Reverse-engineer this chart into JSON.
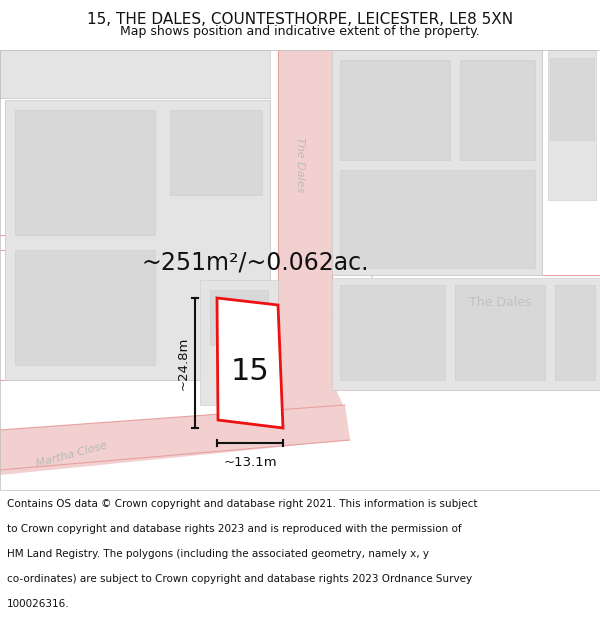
{
  "title_line1": "15, THE DALES, COUNTESTHORPE, LEICESTER, LE8 5XN",
  "title_line2": "Map shows position and indicative extent of the property.",
  "area_text": "~251m²/~0.062ac.",
  "width_label": "~13.1m",
  "height_label": "~24.8m",
  "plot_number": "15",
  "footer_lines": [
    "Contains OS data © Crown copyright and database right 2021. This information is subject",
    "to Crown copyright and database rights 2023 and is reproduced with the permission of",
    "HM Land Registry. The polygons (including the associated geometry, namely x, y",
    "co-ordinates) are subject to Crown copyright and database rights 2023 Ordnance Survey",
    "100026316."
  ],
  "map_bg": "#f7f7f7",
  "road_fill": "#f2d0d0",
  "road_line": "#e8a0a0",
  "block_fill": "#e4e4e4",
  "block_line": "#d0d0d0",
  "building_fill": "#d8d8d8",
  "plot_fill": "#ffffff",
  "plot_edge": "#ee1111",
  "dim_color": "#111111",
  "text_dark": "#111111",
  "text_gray": "#b0b0b0",
  "text_title_size": 11,
  "text_sub_size": 9,
  "area_fontsize": 17,
  "plot_num_size": 22,
  "footer_size": 7.5,
  "street_name_size": 9
}
